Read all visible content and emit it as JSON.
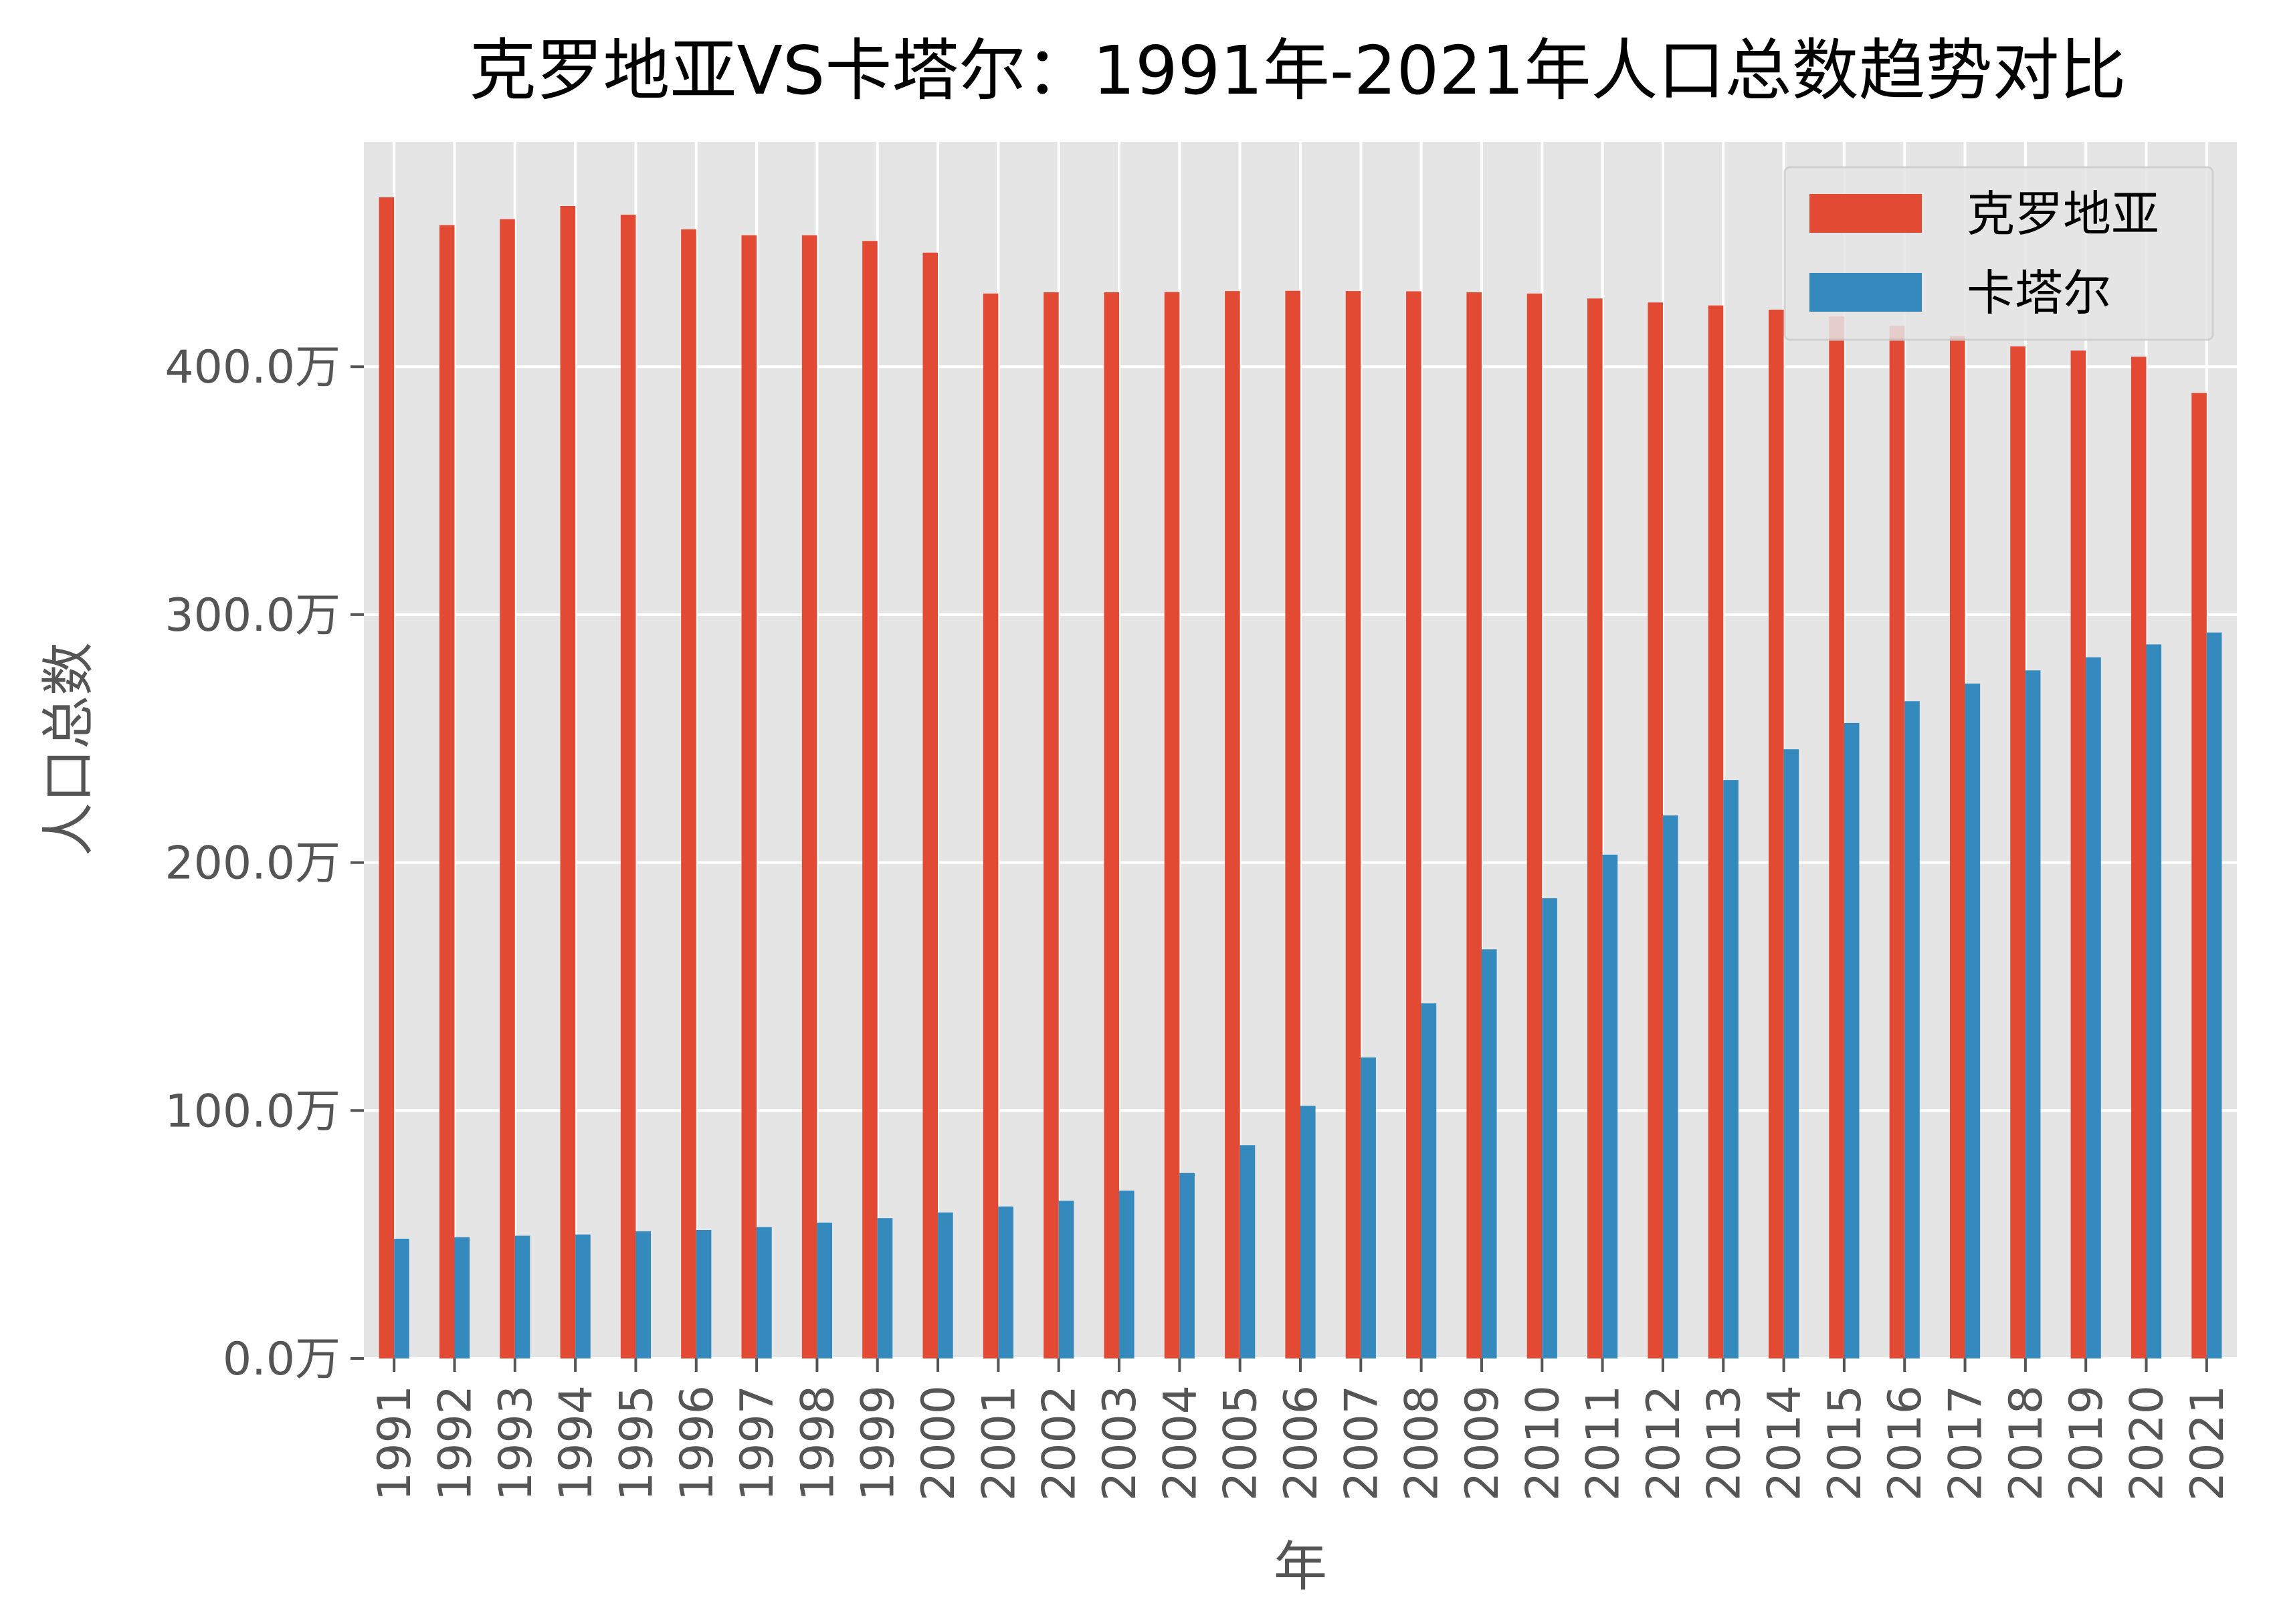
{
  "chart_data": {
    "type": "bar",
    "title": "克罗地亚VS卡塔尔：1991年-2021年人口总数趋势对比",
    "xlabel": "年",
    "ylabel": "人口总数",
    "ylim": [
      0,
      490.7
    ],
    "y_unit_suffix": "万",
    "yticks": [
      0,
      100,
      200,
      300,
      400
    ],
    "ytick_labels": [
      "0.0万",
      "100.0万",
      "200.0万",
      "300.0万",
      "400.0万"
    ],
    "grid": true,
    "legend_position": "top-right",
    "categories": [
      "1991",
      "1992",
      "1993",
      "1994",
      "1995",
      "1996",
      "1997",
      "1998",
      "1999",
      "2000",
      "2001",
      "2002",
      "2003",
      "2004",
      "2005",
      "2006",
      "2007",
      "2008",
      "2009",
      "2010",
      "2011",
      "2012",
      "2013",
      "2014",
      "2015",
      "2016",
      "2017",
      "2018",
      "2019",
      "2020",
      "2021"
    ],
    "series": [
      {
        "name": "克罗地亚",
        "color": "#e24a33",
        "values": [
          468.3,
          457.1,
          459.5,
          464.8,
          461.3,
          455.4,
          453.0,
          453.0,
          450.7,
          446.0,
          429.5,
          430.0,
          430.0,
          430.1,
          430.5,
          430.6,
          430.5,
          430.4,
          430.0,
          429.5,
          427.5,
          425.9,
          424.7,
          423.0,
          420.3,
          416.5,
          412.4,
          408.2,
          406.5,
          404.0,
          389.4
        ]
      },
      {
        "name": "卡塔尔",
        "color": "#348abd",
        "values": [
          48.3,
          48.9,
          49.5,
          50.0,
          51.3,
          51.8,
          53.0,
          54.8,
          56.6,
          58.9,
          61.3,
          63.6,
          67.7,
          74.8,
          86.0,
          101.9,
          121.4,
          143.2,
          165.0,
          185.6,
          203.2,
          219.0,
          233.3,
          245.7,
          256.3,
          265.1,
          272.2,
          277.5,
          282.8,
          288.0,
          292.8
        ]
      }
    ]
  }
}
